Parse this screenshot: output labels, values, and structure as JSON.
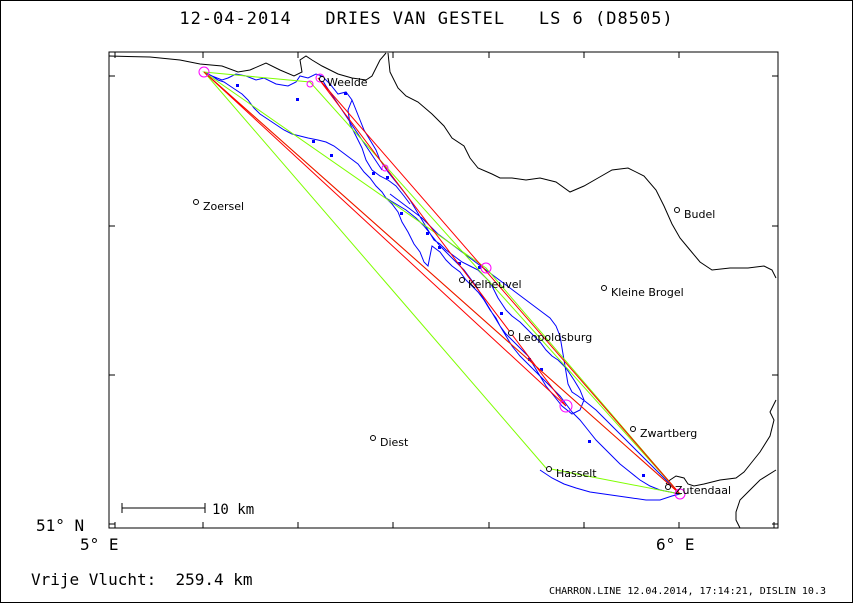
{
  "title": "12-04-2014   DRIES VAN GESTEL   LS 6 (D8505)",
  "axes": {
    "lat_label": "51° N",
    "lon_labels": [
      "5° E",
      "6° E"
    ]
  },
  "scale_bar": {
    "label": "10 km"
  },
  "places": [
    {
      "name": "Weelde"
    },
    {
      "name": "Zoersel"
    },
    {
      "name": "Budel"
    },
    {
      "name": "Kelheuvel"
    },
    {
      "name": "Kleine Brogel"
    },
    {
      "name": "Leopoldsburg"
    },
    {
      "name": "Zwartberg"
    },
    {
      "name": "Diest"
    },
    {
      "name": "Hasselt"
    },
    {
      "name": "Zutendaal"
    }
  ],
  "distance": {
    "label": "Vrije Vlucht:",
    "value": "259.4 km"
  },
  "footer": "CHARRON.LINE 12.04.2014, 17:14:21, DISLIN 10.3",
  "colors": {
    "track": "#0000ff",
    "task_line": "#ff0000",
    "optimized_line": "#7fff00",
    "turnpoint": "#ff00ff",
    "border": "#000000"
  }
}
